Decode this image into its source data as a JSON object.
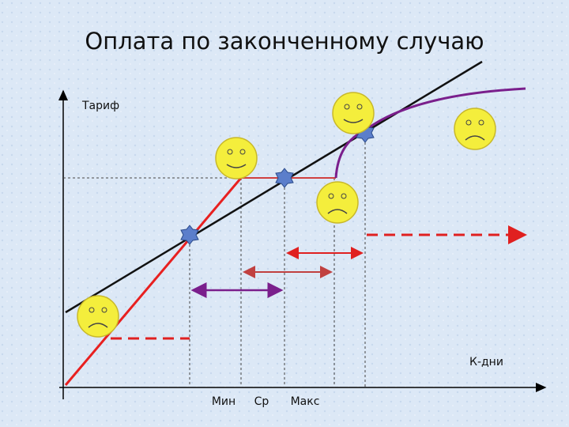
{
  "title": "Оплата по законченному случаю",
  "y_axis_label": "Тариф",
  "x_axis_label": "К-дни",
  "x_marks": [
    "Мин",
    "Ср",
    "Макс"
  ]
}
